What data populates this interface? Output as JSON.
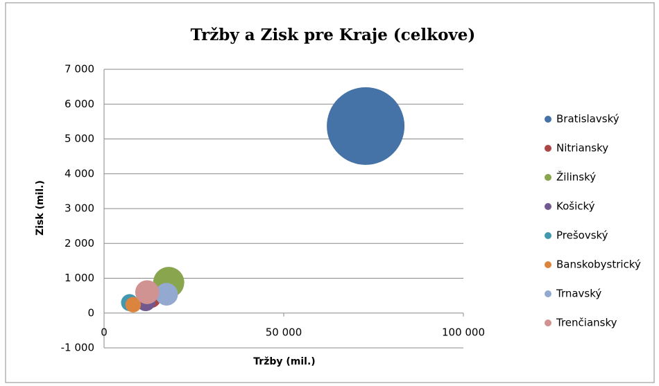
{
  "chart_data": {
    "type": "bubble",
    "title": "Tržby a Zisk pre Kraje (celkove)",
    "x_label": "Tržby (mil.)",
    "y_label": "Zisk (mil.)",
    "xlim": [
      0,
      100000
    ],
    "xticks": [
      0,
      {
        "value": 50000,
        "label": "50 000"
      },
      {
        "value": 100000,
        "label": "100 000"
      }
    ],
    "ylim": [
      -1000,
      7000
    ],
    "yticks": [
      {
        "value": -1000,
        "label": "-1 000"
      },
      0,
      {
        "value": 1000,
        "label": "1 000"
      },
      {
        "value": 2000,
        "label": "2 000"
      },
      {
        "value": 3000,
        "label": "3 000"
      },
      {
        "value": 4000,
        "label": "4 000"
      },
      {
        "value": 5000,
        "label": "5 000"
      },
      {
        "value": 6000,
        "label": "6 000"
      },
      {
        "value": 7000,
        "label": "7 000"
      }
    ],
    "grid": true,
    "legend": "right",
    "series": [
      {
        "name": "Bratislavský",
        "color": "#4572a7",
        "x": [
          72800
        ],
        "values": [
          5370
        ],
        "sizes": [
          100
        ]
      },
      {
        "name": "Nitriansky",
        "color": "#aa4643",
        "x": [
          13000
        ],
        "values": [
          440
        ],
        "sizes": [
          7
        ]
      },
      {
        "name": "Žilinský",
        "color": "#89a54e",
        "x": [
          18000
        ],
        "values": [
          880
        ],
        "sizes": [
          16
        ]
      },
      {
        "name": "Košický",
        "color": "#71588f",
        "x": [
          11600
        ],
        "values": [
          340
        ],
        "sizes": [
          6.5
        ]
      },
      {
        "name": "Prešovský",
        "color": "#4198af",
        "x": [
          7100
        ],
        "values": [
          300
        ],
        "sizes": [
          4.8
        ]
      },
      {
        "name": "Banskobystrický",
        "color": "#db843d",
        "x": [
          8100
        ],
        "values": [
          240
        ],
        "sizes": [
          4
        ]
      },
      {
        "name": "Trnavský",
        "color": "#93a9cf",
        "x": [
          17400
        ],
        "values": [
          540
        ],
        "sizes": [
          8.5
        ]
      },
      {
        "name": "Trenčiansky",
        "color": "#d19392",
        "x": [
          12000
        ],
        "values": [
          600
        ],
        "sizes": [
          9.5
        ]
      }
    ]
  }
}
